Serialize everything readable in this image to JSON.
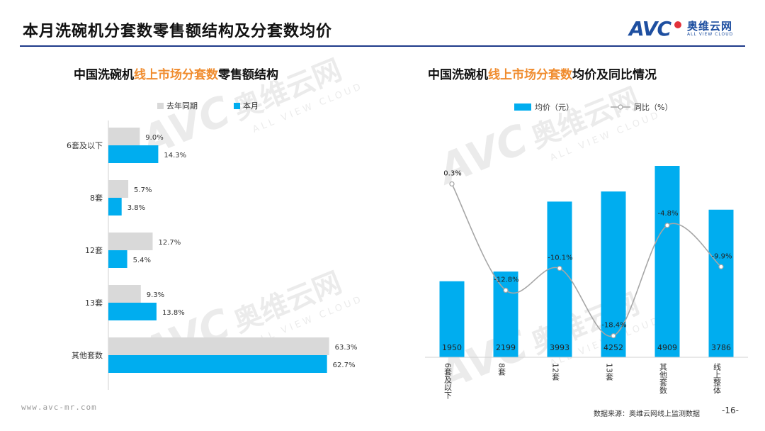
{
  "header": {
    "title": "本月洗碗机分套数零售额结构及分套数均价",
    "logo_text": "AVC",
    "logo_cn": "奥维云网",
    "logo_en": "ALL VIEW CLOUD"
  },
  "watermark": {
    "avc": "AVC",
    "cn": "奥维云网",
    "en": "ALL VIEW CLOUD"
  },
  "footer": {
    "url": "www.avc-mr.com",
    "source": "数据来源：奥维云网线上监测数据",
    "page": "-16-"
  },
  "colors": {
    "current": "#00adef",
    "last_year": "#d9d9d9",
    "line": "#a6a6a6",
    "highlight": "#f08c2e",
    "brand": "#1e4fa0"
  },
  "chart_data": [
    {
      "type": "bar",
      "orientation": "horizontal",
      "title_parts": [
        "中国洗碗机",
        "线上市场分套数",
        "零售额结构"
      ],
      "categories": [
        "6套及以下",
        "8套",
        "12套",
        "13套",
        "其他套数"
      ],
      "series": [
        {
          "name": "去年同期",
          "values": [
            9.0,
            5.7,
            12.7,
            9.3,
            63.3
          ],
          "labels": [
            "9.0%",
            "5.7%",
            "12.7%",
            "9.3%",
            "63.3%"
          ]
        },
        {
          "name": "本月",
          "values": [
            14.3,
            3.8,
            5.4,
            13.8,
            62.7
          ],
          "labels": [
            "14.3%",
            "3.8%",
            "5.4%",
            "13.8%",
            "62.7%"
          ]
        }
      ],
      "xlim": [
        0,
        70
      ],
      "legend": "top",
      "grid": false
    },
    {
      "type": "bar+line",
      "title_parts": [
        "中国洗碗机",
        "线上市场分套数",
        "均价及同比情况"
      ],
      "categories": [
        "6套及以下",
        "8套",
        "12套",
        "13套",
        "其他套数",
        "线上整体"
      ],
      "bar_series": {
        "name": "均价（元）",
        "values": [
          1950,
          2199,
          3993,
          4252,
          4909,
          3786
        ],
        "labels": [
          "1950",
          "2199",
          "3993",
          "4252",
          "4909",
          "3786"
        ]
      },
      "line_series": {
        "name": "同比（%）",
        "values": [
          0.3,
          -12.8,
          -10.1,
          -18.4,
          -4.8,
          -9.9
        ],
        "labels": [
          "0.3%",
          "-12.8%",
          "-10.1%",
          "-18.4%",
          "-4.8%",
          "-9.9%"
        ]
      },
      "ylim_bar": [
        0,
        6000
      ],
      "ylim_line": [
        -20,
        2
      ],
      "legend": "top",
      "grid": false
    }
  ]
}
